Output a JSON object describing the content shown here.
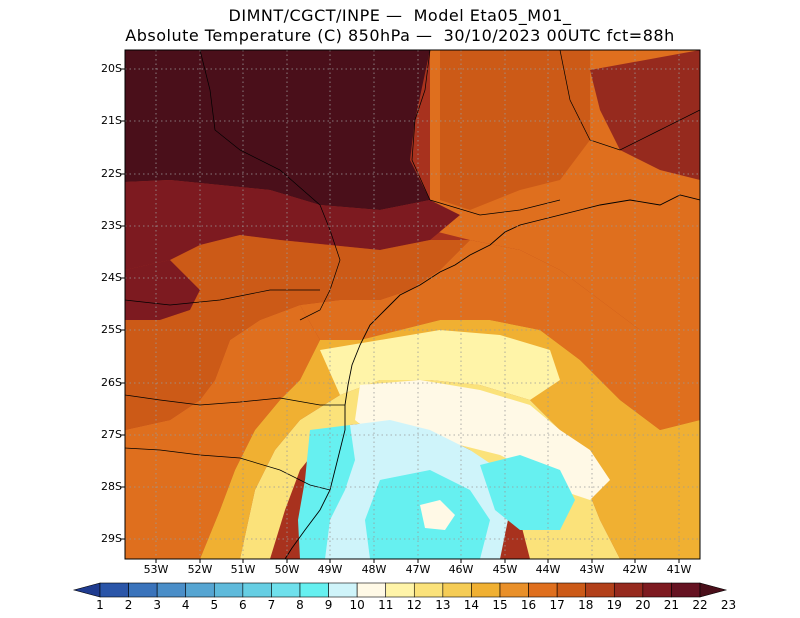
{
  "title": {
    "line1": "DIMNT/CGCT/INPE —  Model Eta05_M01_",
    "line2": "Absolute Temperature (C) 850hPa —  30/10/2023 00UTC fct=88h"
  },
  "lat_labels": [
    "20S",
    "21S",
    "22S",
    "23S",
    "24S",
    "25S",
    "26S",
    "27S",
    "28S",
    "29S"
  ],
  "lon_labels": [
    "53W",
    "52W",
    "51W",
    "50W",
    "49W",
    "48W",
    "47W",
    "46W",
    "45W",
    "44W",
    "43W",
    "42W",
    "41W"
  ],
  "colorbar": {
    "labels": [
      "1",
      "2",
      "3",
      "4",
      "5",
      "6",
      "7",
      "8",
      "9",
      "10",
      "11",
      "12",
      "13",
      "14",
      "15",
      "16",
      "17",
      "18",
      "19",
      "20",
      "21",
      "22",
      "23"
    ],
    "colors": [
      "#1f3b8f",
      "#2a55a8",
      "#3a73bb",
      "#4a8ec8",
      "#56a5d2",
      "#5fbadb",
      "#66cee3",
      "#6fe0ec",
      "#66f0f0",
      "#cff4fa",
      "#fff9e6",
      "#fff4a8",
      "#fbe27a",
      "#f5cc55",
      "#f0b032",
      "#e9902a",
      "#df6f1e",
      "#cc5a17",
      "#b2401a",
      "#962a1e",
      "#7d1a20",
      "#661322",
      "#4a0f1a"
    ]
  },
  "map_layers": {
    "background": "#a8321e",
    "regions": [
      {
        "name": "hot-core-north",
        "color": "#4a0f1a"
      },
      {
        "name": "hot-band",
        "color": "#7d1a20"
      },
      {
        "name": "orange-north",
        "color": "#cc5a17"
      },
      {
        "name": "orange-belt",
        "color": "#df6f1e"
      },
      {
        "name": "yellow-orange",
        "color": "#f0b032"
      },
      {
        "name": "light-yellow",
        "color": "#fbe27a"
      },
      {
        "name": "pale-yellow",
        "color": "#fff4a8"
      },
      {
        "name": "cream",
        "color": "#fff9e6"
      },
      {
        "name": "light-cyan",
        "color": "#cff4fa"
      },
      {
        "name": "cyan",
        "color": "#66f0f0"
      }
    ]
  }
}
